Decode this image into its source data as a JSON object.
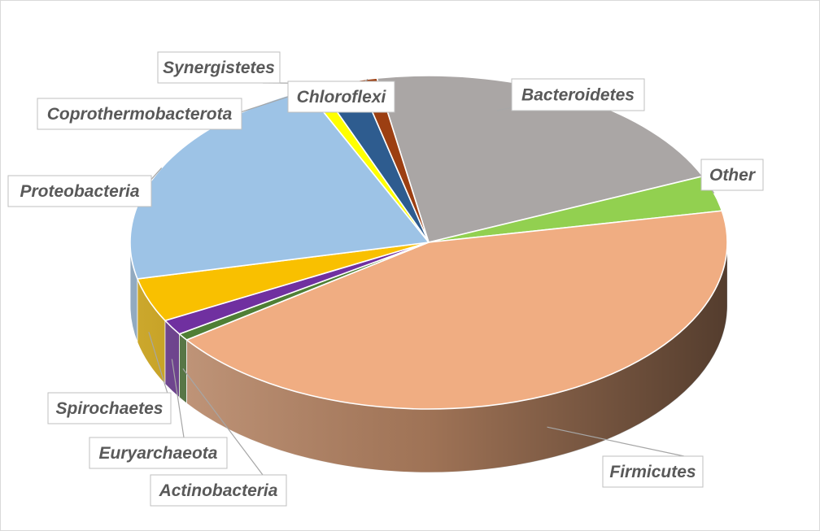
{
  "chart_data": {
    "type": "pie",
    "title": "",
    "style": "3d-exploded-none",
    "categories": [
      "Bacteroidetes",
      "Other",
      "Firmicutes",
      "Actinobacteria",
      "Euryarchaeota",
      "Spirochaetes",
      "Proteobacteria",
      "Coprothermobacterota",
      "Synergistetes",
      "Chloroflexi"
    ],
    "values": [
      21.5,
      3.5,
      43.5,
      0.7,
      1.5,
      4.3,
      22.0,
      0.8,
      2.2,
      1.0
    ],
    "colors": [
      "#aaa6a5",
      "#92d050",
      "#f0ad82",
      "#4f7f35",
      "#7030a0",
      "#f9c000",
      "#9dc3e6",
      "#ffff00",
      "#2e5c8f",
      "#9c3f12"
    ],
    "legend": "none",
    "data_labels": "outside-with-leader-lines"
  }
}
